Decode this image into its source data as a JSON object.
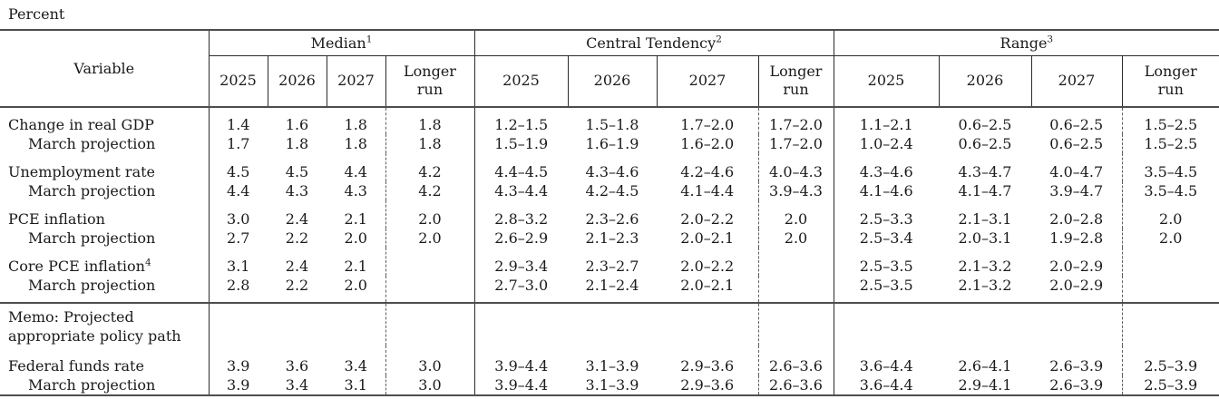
{
  "page": {
    "units_label": "Percent"
  },
  "table": {
    "variable_header": "Variable",
    "groups": [
      {
        "label": "Median",
        "sup": "1",
        "cols": [
          "2025",
          "2026",
          "2027",
          "Longer\nrun"
        ]
      },
      {
        "label": "Central Tendency",
        "sup": "2",
        "cols": [
          "2025",
          "2026",
          "2027",
          "Longer\nrun"
        ]
      },
      {
        "label": "Range",
        "sup": "3",
        "cols": [
          "2025",
          "2026",
          "2027",
          "Longer\nrun"
        ]
      }
    ],
    "rows": [
      {
        "label": "Change in real GDP",
        "sup": "",
        "indent": false,
        "median": [
          "1.4",
          "1.6",
          "1.8",
          "1.8"
        ],
        "central_tendency": [
          "1.2–1.5",
          "1.5–1.8",
          "1.7–2.0",
          "1.7–2.0"
        ],
        "range": [
          "1.1–2.1",
          "0.6–2.5",
          "0.6–2.5",
          "1.5–2.5"
        ]
      },
      {
        "label": "March projection",
        "sup": "",
        "indent": true,
        "median": [
          "1.7",
          "1.8",
          "1.8",
          "1.8"
        ],
        "central_tendency": [
          "1.5–1.9",
          "1.6–1.9",
          "1.6–2.0",
          "1.7–2.0"
        ],
        "range": [
          "1.0–2.4",
          "0.6–2.5",
          "0.6–2.5",
          "1.5–2.5"
        ]
      },
      {
        "label": "Unemployment rate",
        "sup": "",
        "indent": false,
        "median": [
          "4.5",
          "4.5",
          "4.4",
          "4.2"
        ],
        "central_tendency": [
          "4.4–4.5",
          "4.3–4.6",
          "4.2–4.6",
          "4.0–4.3"
        ],
        "range": [
          "4.3–4.6",
          "4.3–4.7",
          "4.0–4.7",
          "3.5–4.5"
        ]
      },
      {
        "label": "March projection",
        "sup": "",
        "indent": true,
        "median": [
          "4.4",
          "4.3",
          "4.3",
          "4.2"
        ],
        "central_tendency": [
          "4.3–4.4",
          "4.2–4.5",
          "4.1–4.4",
          "3.9–4.3"
        ],
        "range": [
          "4.1–4.6",
          "4.1–4.7",
          "3.9–4.7",
          "3.5–4.5"
        ]
      },
      {
        "label": "PCE inflation",
        "sup": "",
        "indent": false,
        "median": [
          "3.0",
          "2.4",
          "2.1",
          "2.0"
        ],
        "central_tendency": [
          "2.8–3.2",
          "2.3–2.6",
          "2.0–2.2",
          "2.0"
        ],
        "range": [
          "2.5–3.3",
          "2.1–3.1",
          "2.0–2.8",
          "2.0"
        ]
      },
      {
        "label": "March projection",
        "sup": "",
        "indent": true,
        "median": [
          "2.7",
          "2.2",
          "2.0",
          "2.0"
        ],
        "central_tendency": [
          "2.6–2.9",
          "2.1–2.3",
          "2.0–2.1",
          "2.0"
        ],
        "range": [
          "2.5–3.4",
          "2.0–3.1",
          "1.9–2.8",
          "2.0"
        ]
      },
      {
        "label": "Core PCE inflation",
        "sup": "4",
        "indent": false,
        "median": [
          "3.1",
          "2.4",
          "2.1",
          ""
        ],
        "central_tendency": [
          "2.9–3.4",
          "2.3–2.7",
          "2.0–2.2",
          ""
        ],
        "range": [
          "2.5–3.5",
          "2.1–3.2",
          "2.0–2.9",
          ""
        ]
      },
      {
        "label": "March projection",
        "sup": "",
        "indent": true,
        "pre_memo": true,
        "median": [
          "2.8",
          "2.2",
          "2.0",
          ""
        ],
        "central_tendency": [
          "2.7–3.0",
          "2.1–2.4",
          "2.0–2.1",
          ""
        ],
        "range": [
          "2.5–3.5",
          "2.1–3.2",
          "2.0–2.9",
          ""
        ]
      },
      {
        "memo": true,
        "memo_lines": [
          "Memo: Projected",
          "appropriate policy path"
        ],
        "median": [
          "",
          "",
          "",
          ""
        ],
        "central_tendency": [
          "",
          "",
          "",
          ""
        ],
        "range": [
          "",
          "",
          "",
          ""
        ]
      },
      {
        "label": "Federal funds rate",
        "sup": "",
        "indent": false,
        "median": [
          "3.9",
          "3.6",
          "3.4",
          "3.0"
        ],
        "central_tendency": [
          "3.9–4.4",
          "3.1–3.9",
          "2.9–3.6",
          "2.6–3.6"
        ],
        "range": [
          "3.6–4.4",
          "2.6–4.1",
          "2.6–3.9",
          "2.5–3.9"
        ]
      },
      {
        "label": "March projection",
        "sup": "",
        "indent": true,
        "median": [
          "3.9",
          "3.4",
          "3.1",
          "3.0"
        ],
        "central_tendency": [
          "3.9–4.4",
          "3.1–3.9",
          "2.9–3.6",
          "2.6–3.6"
        ],
        "range": [
          "3.6–4.4",
          "2.9–4.1",
          "2.6–3.9",
          "2.5–3.9"
        ]
      }
    ]
  }
}
